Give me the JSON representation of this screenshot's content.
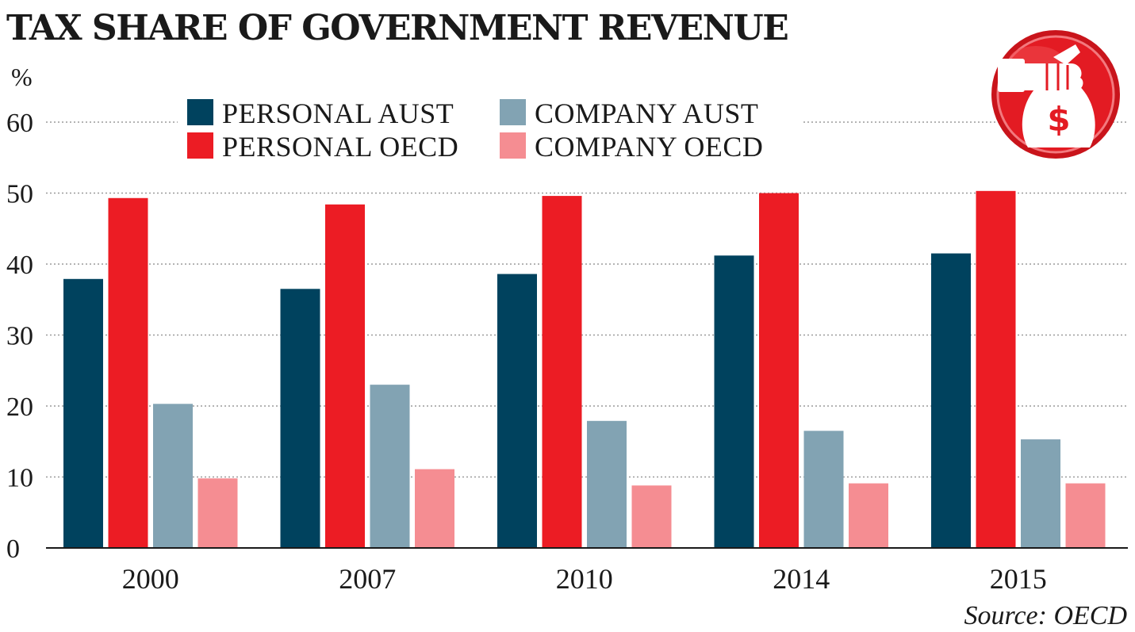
{
  "chart_data": {
    "type": "bar",
    "title": "TAX SHARE OF GOVERNMENT REVENUE",
    "ylabel": "%",
    "xlabel": "",
    "ylim": [
      0,
      60
    ],
    "yticks": [
      0,
      10,
      20,
      30,
      40,
      50,
      60
    ],
    "grid": true,
    "legend_position": "top-left",
    "categories": [
      "2000",
      "2007",
      "2010",
      "2014",
      "2015"
    ],
    "series": [
      {
        "name": "PERSONAL AUST",
        "color": "#00425e",
        "values": [
          37.9,
          36.5,
          38.6,
          41.2,
          41.5
        ]
      },
      {
        "name": "PERSONAL OECD",
        "color": "#ec1c24",
        "values": [
          49.3,
          48.4,
          49.6,
          50.0,
          50.3
        ]
      },
      {
        "name": "COMPANY AUST",
        "color": "#82a3b3",
        "values": [
          20.3,
          23.0,
          17.9,
          16.5,
          15.3
        ]
      },
      {
        "name": "COMPANY OECD",
        "color": "#f58d92",
        "values": [
          9.8,
          11.1,
          8.8,
          9.1,
          9.1
        ]
      }
    ],
    "legend_order": [
      "PERSONAL AUST",
      "COMPANY AUST",
      "PERSONAL OECD",
      "COMPANY OECD"
    ],
    "source": "Source: OECD"
  },
  "icon": {
    "name": "money-bag-hand-icon",
    "symbol": "$",
    "badge_color": "#e31b23"
  }
}
